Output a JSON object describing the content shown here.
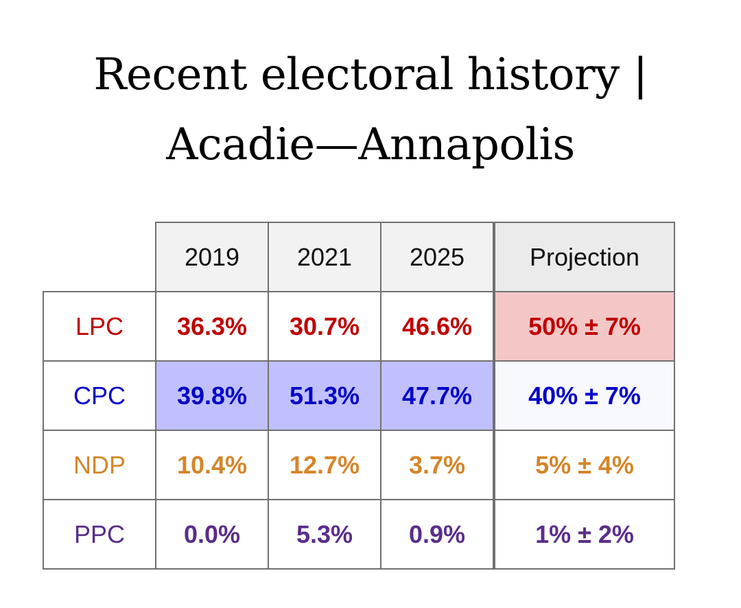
{
  "title": {
    "line1": "Recent electoral history |",
    "line2": "Acadie—Annapolis"
  },
  "table": {
    "columns": [
      "2019",
      "2021",
      "2025",
      "Projection"
    ],
    "rows": [
      {
        "party": "LPC",
        "color": "#c00000",
        "values": [
          "36.3%",
          "30.7%",
          "46.6%",
          "50% ± 7%"
        ],
        "cell_bg": [
          "#ffffff",
          "#ffffff",
          "#ffffff",
          "#f4c7c7"
        ]
      },
      {
        "party": "CPC",
        "color": "#0000c8",
        "values": [
          "39.8%",
          "51.3%",
          "47.7%",
          "40% ± 7%"
        ],
        "cell_bg": [
          "#c0c0ff",
          "#c0c0ff",
          "#c0c0ff",
          "#f8f8ff"
        ]
      },
      {
        "party": "NDP",
        "color": "#d4862a",
        "values": [
          "10.4%",
          "12.7%",
          "3.7%",
          "5% ± 4%"
        ],
        "cell_bg": [
          "#ffffff",
          "#ffffff",
          "#ffffff",
          "#ffffff"
        ]
      },
      {
        "party": "PPC",
        "color": "#5a2d8a",
        "values": [
          "0.0%",
          "5.3%",
          "0.9%",
          "1% ± 2%"
        ],
        "cell_bg": [
          "#ffffff",
          "#ffffff",
          "#ffffff",
          "#ffffff"
        ]
      }
    ]
  }
}
